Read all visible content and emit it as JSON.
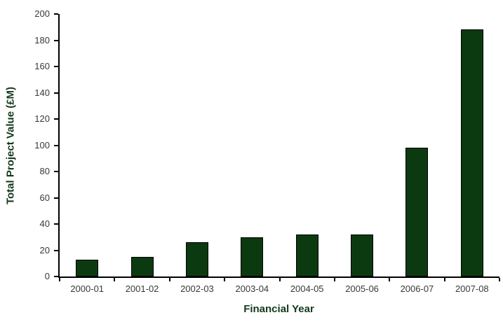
{
  "chart_data": {
    "type": "bar",
    "title": "",
    "categories": [
      "2000-01",
      "2001-02",
      "2002-03",
      "2003-04",
      "2004-05",
      "2005-06",
      "2006-07",
      "2007-08"
    ],
    "values": [
      13,
      15,
      26,
      30,
      32,
      32,
      98,
      188
    ],
    "xlabel": "Financial Year",
    "ylabel": "Total Project Value (£M)",
    "ylim": [
      0,
      200
    ],
    "ytick_step": 20,
    "yticks": [
      0,
      20,
      40,
      60,
      80,
      100,
      120,
      140,
      160,
      180,
      200
    ],
    "grid": false,
    "legend": false,
    "colors": {
      "bar_fill": "#0c3a10",
      "bar_border": "#000000",
      "axis_line": "#000000",
      "tick_label": "#333c33",
      "axis_title": "#14381c",
      "background": "#ffffff"
    }
  }
}
